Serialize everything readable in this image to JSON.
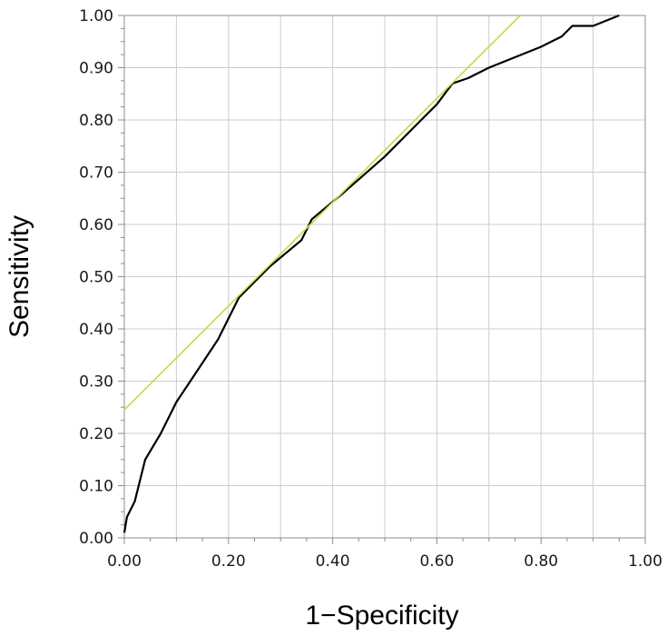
{
  "chart_data": {
    "type": "line",
    "title": "",
    "xlabel": "1−Specificity",
    "ylabel": "Sensitivity",
    "xlim": [
      0,
      1
    ],
    "ylim": [
      0,
      1
    ],
    "x_ticks": [
      "0.00",
      "0.20",
      "0.40",
      "0.60",
      "0.80",
      "1.00"
    ],
    "y_ticks": [
      "0.00",
      "0.10",
      "0.20",
      "0.30",
      "0.40",
      "0.50",
      "0.60",
      "0.70",
      "0.80",
      "0.90",
      "1.00"
    ],
    "grid": true,
    "legend": "none",
    "series": [
      {
        "color": "#000000",
        "x": [
          0.0,
          0.005,
          0.02,
          0.04,
          0.07,
          0.1,
          0.14,
          0.18,
          0.22,
          0.28,
          0.34,
          0.36,
          0.42,
          0.5,
          0.57,
          0.6,
          0.63,
          0.66,
          0.7,
          0.75,
          0.8,
          0.84,
          0.86,
          0.9,
          0.95
        ],
        "y": [
          0.01,
          0.04,
          0.07,
          0.15,
          0.2,
          0.26,
          0.32,
          0.38,
          0.46,
          0.52,
          0.57,
          0.61,
          0.66,
          0.73,
          0.8,
          0.83,
          0.87,
          0.88,
          0.9,
          0.92,
          0.94,
          0.96,
          0.98,
          0.98,
          1.0
        ]
      },
      {
        "color": "#d4d24a",
        "x": [
          0.0,
          0.76
        ],
        "y": [
          0.245,
          1.0
        ]
      }
    ]
  }
}
